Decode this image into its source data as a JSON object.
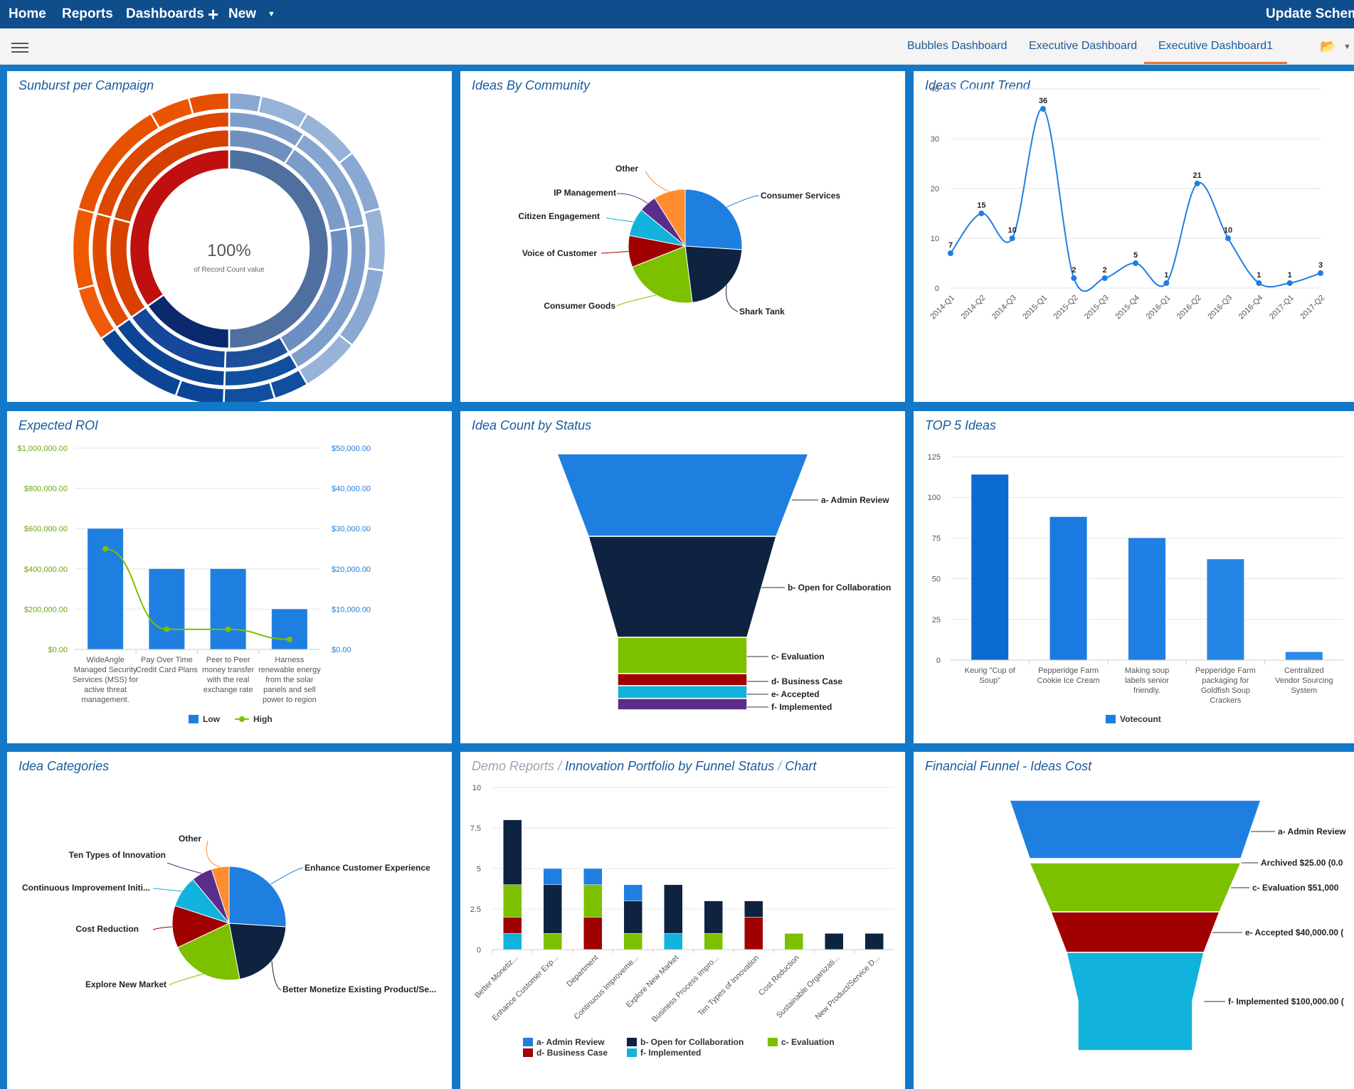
{
  "nav": {
    "home": "Home",
    "reports": "Reports",
    "dashboards": "Dashboards",
    "new_label": "New",
    "update_schema": "Update Schema"
  },
  "tabs": [
    "Bubbles Dashboard",
    "Executive Dashboard",
    "Executive Dashboard1"
  ],
  "panels": {
    "sunburst": {
      "title": "Sunburst per Campaign",
      "center_value": "100%",
      "center_caption": "of Record Count value"
    },
    "community": {
      "title": "Ideas By Community"
    },
    "trend": {
      "title": "Ideas Count Trend"
    },
    "roi": {
      "title": "Expected ROI"
    },
    "status": {
      "title": "Idea Count by Status"
    },
    "top5": {
      "title": "TOP 5 Ideas"
    },
    "categories": {
      "title": "Idea Categories"
    },
    "portfolio": {
      "crumb": "Demo Reports",
      "sep": "/",
      "title": "Innovation Portfolio by Funnel Status",
      "sep2": "/",
      "tail": "Chart"
    },
    "financial": {
      "title": "Financial Funnel - Ideas Cost"
    }
  },
  "colors": {
    "blue": "#1e7fe0",
    "navy": "#0d2340",
    "green": "#7cc000",
    "red": "#a00000",
    "cyan": "#11b2dc",
    "purple": "#5b2d8a",
    "orange": "#ff8c2e"
  },
  "chart_data": [
    {
      "id": "sunburst",
      "type": "pie",
      "subtype": "sunburst",
      "title": "Sunburst per Campaign",
      "annotation": "100% of Record Count value"
    },
    {
      "id": "community",
      "type": "pie",
      "title": "Ideas By Community",
      "slices": [
        {
          "label": "Consumer Services",
          "value": 26,
          "color": "#1e7fe0"
        },
        {
          "label": "Shark Tank",
          "value": 22,
          "color": "#0d2340"
        },
        {
          "label": "Consumer Goods",
          "value": 21,
          "color": "#7cc000"
        },
        {
          "label": "Voice of Customer",
          "value": 9,
          "color": "#a00000"
        },
        {
          "label": "Citizen Engagement",
          "value": 8,
          "color": "#11b2dc"
        },
        {
          "label": "IP Management",
          "value": 5,
          "color": "#5b2d8a"
        },
        {
          "label": "Other",
          "value": 9,
          "color": "#ff8c2e"
        }
      ]
    },
    {
      "id": "trend",
      "type": "line",
      "title": "Ideas Count Trend",
      "categories": [
        "2014-Q1",
        "2014-Q2",
        "2014-Q3",
        "2015-Q1",
        "2015-Q2",
        "2015-Q3",
        "2015-Q4",
        "2016-Q1",
        "2016-Q2",
        "2016-Q3",
        "2016-Q4",
        "2017-Q1",
        "2017-Q2"
      ],
      "values": [
        7,
        15,
        10,
        36,
        2,
        2,
        5,
        1,
        21,
        10,
        1,
        1,
        3
      ],
      "ylim": [
        0,
        40
      ],
      "yticks": [
        "0",
        "10",
        "20",
        "30",
        "40"
      ]
    },
    {
      "id": "roi",
      "type": "bar",
      "title": "Expected ROI",
      "categories": [
        [
          "WideAngle",
          "Managed Security",
          "Services (MSS) for",
          "active threat",
          "management."
        ],
        [
          "Pay Over Time",
          "Credit Card Plans"
        ],
        [
          "Peer to Peer",
          "money transfer",
          "with the real",
          "exchange rate"
        ],
        [
          "Harness",
          "renewable energy",
          "from the solar",
          "panels and sell",
          "power to region"
        ]
      ],
      "series": [
        {
          "name": "Low",
          "type": "bar",
          "axis": "left",
          "values": [
            600000,
            400000,
            400000,
            200000
          ]
        },
        {
          "name": "High",
          "type": "line",
          "axis": "right",
          "values": [
            25000,
            5000,
            5000,
            2500
          ]
        }
      ],
      "ylim_left": [
        0,
        1000000
      ],
      "ylim_right": [
        0,
        50000
      ],
      "yticks_left": [
        "$0.00",
        "$200,000.00",
        "$400,000.00",
        "$600,000.00",
        "$800,000.00",
        "$1,000,000.00"
      ],
      "yticks_right": [
        "$0.00",
        "$10,000.00",
        "$20,000.00",
        "$30,000.00",
        "$40,000.00",
        "$50,000.00"
      ],
      "legend": "bottom"
    },
    {
      "id": "status",
      "type": "bar",
      "subtype": "funnel",
      "title": "Idea Count by Status",
      "stages": [
        {
          "label": "a- Admin Review",
          "value": 8,
          "color": "#1e7fe0"
        },
        {
          "label": "b- Open for Collaboration",
          "value": 10,
          "color": "#0d2340"
        },
        {
          "label": "c- Evaluation",
          "value": 4,
          "color": "#7cc000"
        },
        {
          "label": "d- Business Case",
          "value": 1,
          "color": "#a00000"
        },
        {
          "label": "e- Accepted",
          "value": 1,
          "color": "#11b2dc"
        },
        {
          "label": "f- Implemented",
          "value": 1,
          "color": "#5b2d8a"
        }
      ]
    },
    {
      "id": "top5",
      "type": "bar",
      "title": "TOP 5 Ideas",
      "categories": [
        [
          "Keurig \"Cup of",
          "Soup\""
        ],
        [
          "Pepperidge Farm",
          "Cookie Ice Cream"
        ],
        [
          "Making soup",
          "labels senior",
          "friendly."
        ],
        [
          "Pepperidge Farm",
          "packaging for",
          "Goldfish Soup",
          "Crackers"
        ],
        [
          "Centralized",
          "Vendor Sourcing",
          "System"
        ]
      ],
      "series": [
        {
          "name": "Votecount",
          "values": [
            114,
            88,
            75,
            62,
            5
          ]
        }
      ],
      "ylim": [
        0,
        125
      ],
      "yticks": [
        "0",
        "25",
        "50",
        "75",
        "100",
        "125"
      ],
      "legend": "bottom"
    },
    {
      "id": "categories",
      "type": "pie",
      "title": "Idea Categories",
      "slices": [
        {
          "label": "Enhance Customer Experience",
          "value": 26,
          "color": "#1e7fe0"
        },
        {
          "label": "Better Monetize Existing Product/Se...",
          "value": 21,
          "color": "#0d2340"
        },
        {
          "label": "Explore New Market",
          "value": 21,
          "color": "#7cc000"
        },
        {
          "label": "Cost Reduction",
          "value": 12,
          "color": "#a00000"
        },
        {
          "label": "Continuous Improvement Initi...",
          "value": 9,
          "color": "#11b2dc"
        },
        {
          "label": "Ten Types of Innovation",
          "value": 6,
          "color": "#5b2d8a"
        },
        {
          "label": "Other",
          "value": 5,
          "color": "#ff8c2e"
        }
      ]
    },
    {
      "id": "portfolio",
      "type": "bar",
      "subtype": "stacked",
      "title": "Innovation Portfolio by Funnel Status",
      "categories": [
        "Better Monetiz...",
        "Enhance Customer Exp...",
        "Department",
        "Continuous Improveme...",
        "Explore New Market",
        "Business Process Impro...",
        "Ten Types of Innovation",
        "Cost Reduction",
        "Sustainable Organizati...",
        "New Product/Service D..."
      ],
      "series": [
        {
          "name": "f- Implemented",
          "color": "#11b2dc",
          "values": [
            1,
            0,
            0,
            0,
            1,
            0,
            0,
            0,
            0,
            0
          ]
        },
        {
          "name": "d- Business Case",
          "color": "#a00000",
          "values": [
            1,
            0,
            2,
            0,
            0,
            0,
            2,
            0,
            0,
            0
          ]
        },
        {
          "name": "c- Evaluation",
          "color": "#7cc000",
          "values": [
            2,
            1,
            2,
            1,
            0,
            1,
            0,
            1,
            0,
            0
          ]
        },
        {
          "name": "b- Open for Collaboration",
          "color": "#0d2340",
          "values": [
            4,
            3,
            0,
            2,
            3,
            2,
            1,
            0,
            1,
            1
          ]
        },
        {
          "name": "a- Admin Review",
          "color": "#1e7fe0",
          "values": [
            0,
            1,
            1,
            1,
            0,
            0,
            0,
            0,
            0,
            0
          ]
        }
      ],
      "ylim": [
        0,
        10
      ],
      "yticks": [
        "0",
        "2.5",
        "5",
        "7.5",
        "10"
      ],
      "legend": "bottom",
      "legend_order": [
        [
          "a- Admin Review",
          "#1e7fe0"
        ],
        [
          "b- Open for Collaboration",
          "#0d2340"
        ],
        [
          "c- Evaluation",
          "#7cc000"
        ],
        [
          "d- Business Case",
          "#a00000"
        ],
        [
          "f- Implemented",
          "#11b2dc"
        ]
      ]
    },
    {
      "id": "financial",
      "type": "bar",
      "subtype": "funnel",
      "title": "Financial Funnel - Ideas Cost",
      "stages": [
        {
          "label": "a- Admin Review",
          "value": null,
          "color": "#1e7fe0"
        },
        {
          "label": "Archived $25.00 (0.0",
          "value": 25,
          "color": "#1e7fe0"
        },
        {
          "label": "c- Evaluation $51,000",
          "value": 51000,
          "color": "#7cc000"
        },
        {
          "label": "e- Accepted $40,000.00 (",
          "value": 40000,
          "color": "#a00000"
        },
        {
          "label": "f- Implemented $100,000.00 (",
          "value": 100000,
          "color": "#11b2dc"
        }
      ]
    }
  ]
}
